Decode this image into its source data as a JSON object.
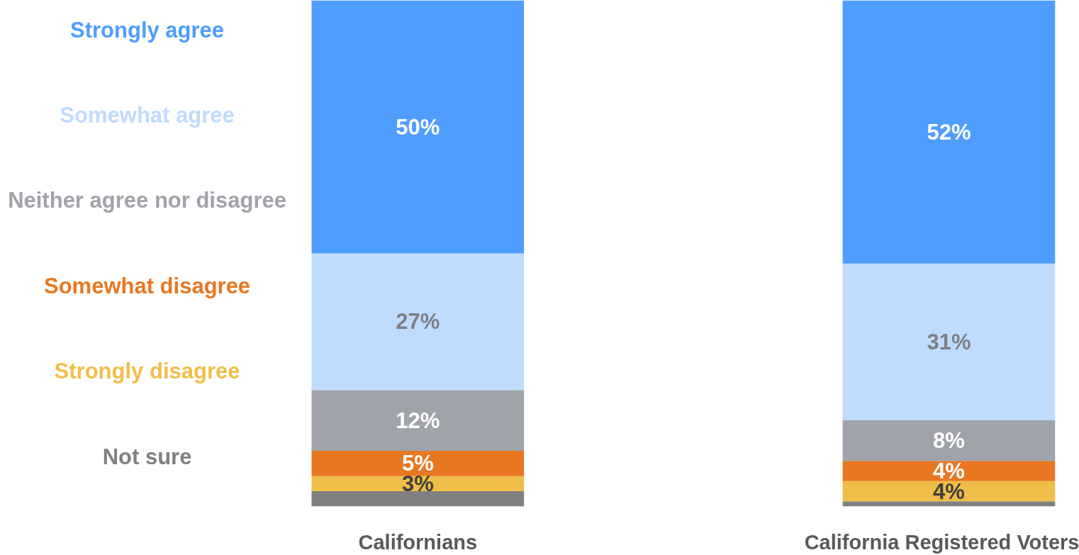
{
  "chart_data": {
    "type": "bar",
    "stacked": true,
    "categories": [
      "Californians",
      "California Registered Voters"
    ],
    "series": [
      {
        "name": "Not sure",
        "color": "#808080",
        "values": [
          3,
          1
        ],
        "value_labels": [
          null,
          null
        ]
      },
      {
        "name": "Strongly disagree",
        "color": "#f0be48",
        "values": [
          3,
          4
        ],
        "value_labels": [
          "3%",
          "4%"
        ]
      },
      {
        "name": "Somewhat disagree",
        "color": "#e87722",
        "values": [
          5,
          4
        ],
        "value_labels": [
          "5%",
          "4%"
        ]
      },
      {
        "name": "Neither agree nor disagree",
        "color": "#a0a3aa",
        "values": [
          12,
          8
        ],
        "value_labels": [
          "12%",
          "8%"
        ]
      },
      {
        "name": "Somewhat agree",
        "color": "#bfdbfe",
        "values": [
          27,
          31
        ],
        "value_labels": [
          "27%",
          "31%"
        ]
      },
      {
        "name": "Strongly agree",
        "color": "#4f9dfe",
        "values": [
          50,
          52
        ],
        "value_labels": [
          "50%",
          "52%"
        ]
      }
    ],
    "ylim": [
      0,
      100
    ],
    "tick_labels": "x",
    "legend": "left"
  }
}
